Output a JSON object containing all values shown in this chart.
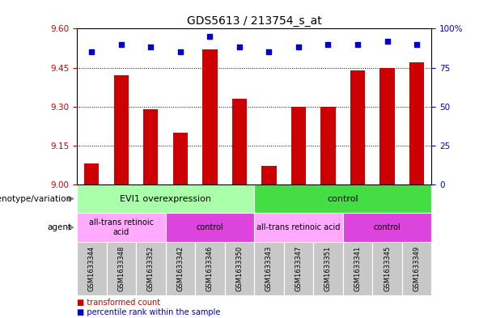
{
  "title": "GDS5613 / 213754_s_at",
  "samples": [
    "GSM1633344",
    "GSM1633348",
    "GSM1633352",
    "GSM1633342",
    "GSM1633346",
    "GSM1633350",
    "GSM1633343",
    "GSM1633347",
    "GSM1633351",
    "GSM1633341",
    "GSM1633345",
    "GSM1633349"
  ],
  "transformed_counts": [
    9.08,
    9.42,
    9.29,
    9.2,
    9.52,
    9.33,
    9.07,
    9.3,
    9.3,
    9.44,
    9.45,
    9.47
  ],
  "percentile_ranks": [
    85,
    90,
    88,
    85,
    95,
    88,
    85,
    88,
    90,
    90,
    92,
    90
  ],
  "ylim_left": [
    9.0,
    9.6
  ],
  "ylim_right": [
    0,
    100
  ],
  "yticks_left": [
    9.0,
    9.15,
    9.3,
    9.45,
    9.6
  ],
  "yticks_right": [
    0,
    25,
    50,
    75,
    100
  ],
  "bar_color": "#cc0000",
  "scatter_color": "#0000cc",
  "bg_color": "#ffffff",
  "xticklabel_bg": "#c8c8c8",
  "genotype_row": [
    {
      "label": "EVI1 overexpression",
      "start": 0,
      "end": 6,
      "color": "#aaffaa"
    },
    {
      "label": "control",
      "start": 6,
      "end": 12,
      "color": "#44dd44"
    }
  ],
  "agent_row": [
    {
      "label": "all-trans retinoic\nacid",
      "start": 0,
      "end": 3,
      "color": "#ffaaff"
    },
    {
      "label": "control",
      "start": 3,
      "end": 6,
      "color": "#dd44dd"
    },
    {
      "label": "all-trans retinoic acid",
      "start": 6,
      "end": 9,
      "color": "#ffaaff"
    },
    {
      "label": "control",
      "start": 9,
      "end": 12,
      "color": "#dd44dd"
    }
  ],
  "legend_items": [
    {
      "label": "transformed count",
      "color": "#cc0000"
    },
    {
      "label": "percentile rank within the sample",
      "color": "#0000cc"
    }
  ],
  "row_labels": [
    "genotype/variation",
    "agent"
  ],
  "title_fontsize": 10,
  "tick_fontsize": 7.5,
  "sample_fontsize": 6,
  "row_label_fontsize": 7.5,
  "legend_fontsize": 7
}
